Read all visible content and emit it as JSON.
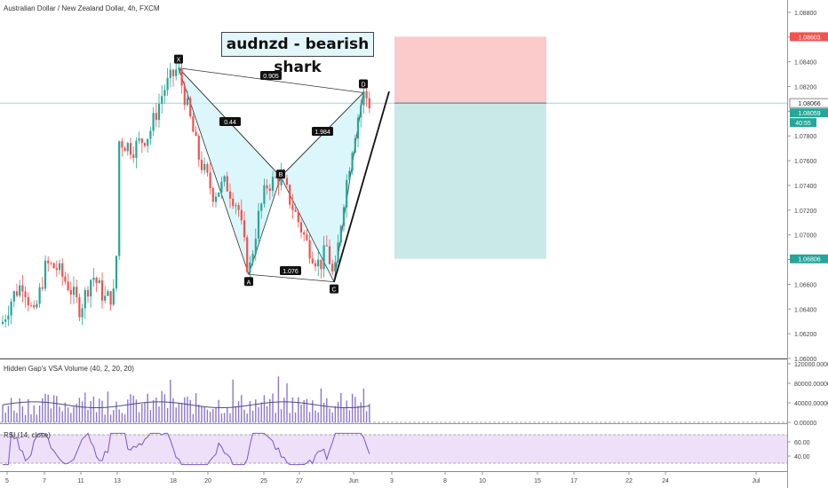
{
  "header": {
    "symbol_title": "Australian Dollar / New Zealand Dollar, 4h, FXCM"
  },
  "annotation_title": "audnzd - bearish shark",
  "colors": {
    "up": "#26a69a",
    "down": "#ef5350",
    "target": "#26a69a",
    "stop": "#ef5350",
    "harmonic_fill": "#cdf3fb",
    "rsi_band": "#ede0f8",
    "rsi_line": "#7e57c2",
    "vol_bar": "#8e77c8",
    "vol_ma": "#4a4a8a"
  },
  "chart_data": [
    {
      "type": "candlestick",
      "title": "Australian Dollar / New Zealand Dollar, 4h, FXCM",
      "ylim": [
        1.06,
        1.089
      ],
      "y_ticks": [
        "1.08800",
        "1.08600",
        "1.08400",
        "1.08200",
        "1.08000",
        "1.07800",
        "1.07600",
        "1.07400",
        "1.07200",
        "1.07000",
        "1.06800",
        "1.06600",
        "1.06400",
        "1.06200",
        "1.06000"
      ],
      "x_ticks": [
        "5",
        "7",
        "11",
        "13",
        "18",
        "20",
        "25",
        "27",
        "Jun",
        "3",
        "8",
        "10",
        "15",
        "17",
        "22",
        "24",
        "Jul"
      ],
      "price_labels": {
        "current": "1.08066",
        "last": "1.08059",
        "countdown": "40:55",
        "stop": "1.08603",
        "target": "1.06806"
      },
      "pattern": {
        "points": [
          {
            "label": "X",
            "price": 1.0835
          },
          {
            "label": "A",
            "price": 1.0668
          },
          {
            "label": "B",
            "price": 1.0747
          },
          {
            "label": "C",
            "price": 1.0662
          },
          {
            "label": "D",
            "price": 1.0815
          }
        ],
        "ratios": [
          "0.905",
          "0.44",
          "1.984",
          "1.076"
        ]
      },
      "position": {
        "type": "short",
        "entry": 1.08066,
        "stop": 1.08603,
        "target": 1.06806
      }
    },
    {
      "type": "bar",
      "title": "Hidden Gap's VSA Volume (40, 2, 20, 20)",
      "ylim": [
        0,
        120000
      ],
      "y_ticks": [
        "120000.00000",
        "80000.00000",
        "40000.00000",
        "0.00000"
      ]
    },
    {
      "type": "line",
      "title": "RSI (14, close)",
      "ylim": [
        20,
        80
      ],
      "y_ticks": [
        "60.00",
        "40.00"
      ]
    }
  ]
}
